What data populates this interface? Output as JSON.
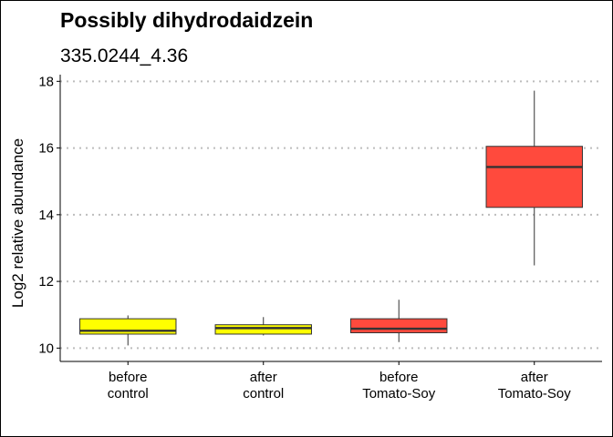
{
  "chart_data": {
    "type": "boxplot",
    "title": "Possibly dihydrodaidzein",
    "subtitle": "335.0244_4.36",
    "xlabel": "",
    "ylabel": "Log2 relative abundance",
    "ylim": [
      9.6,
      18.2
    ],
    "yticks": [
      10,
      12,
      14,
      16,
      18
    ],
    "grid": "horizontal dotted",
    "legend": "none",
    "categories": [
      [
        "before",
        "control"
      ],
      [
        "after",
        "control"
      ],
      [
        "before",
        "Tomato-Soy"
      ],
      [
        "after",
        "Tomato-Soy"
      ]
    ],
    "boxes": [
      {
        "min": 10.08,
        "q1": 10.42,
        "median": 10.52,
        "q3": 10.88,
        "max": 10.98,
        "color": "#FFFF00"
      },
      {
        "min": 10.38,
        "q1": 10.42,
        "median": 10.6,
        "q3": 10.7,
        "max": 10.93,
        "color": "#FFFF00"
      },
      {
        "min": 10.18,
        "q1": 10.46,
        "median": 10.58,
        "q3": 10.88,
        "max": 11.45,
        "color": "#FF4A3D"
      },
      {
        "min": 12.48,
        "q1": 14.22,
        "median": 15.43,
        "q3": 16.05,
        "max": 17.72,
        "color": "#FF4A3D"
      }
    ]
  }
}
